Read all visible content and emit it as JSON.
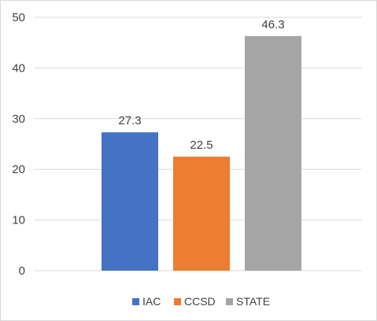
{
  "chart_data": {
    "type": "bar",
    "categories": [
      "IAC",
      "CCSD",
      "STATE"
    ],
    "values": [
      27.3,
      22.5,
      46.3
    ],
    "data_labels": [
      "27.3",
      "22.5",
      "46.3"
    ],
    "colors": [
      "#4472c4",
      "#ed7d31",
      "#a5a5a5"
    ],
    "ylim": [
      0,
      50
    ],
    "yticks": [
      0,
      10,
      20,
      30,
      40,
      50
    ],
    "ytick_labels": [
      "0",
      "10",
      "20",
      "30",
      "40",
      "50"
    ],
    "grid": true,
    "legend": {
      "placement": "bottom",
      "entries": [
        "IAC",
        "CCSD",
        "STATE"
      ]
    },
    "title": "",
    "xlabel": "",
    "ylabel": ""
  }
}
